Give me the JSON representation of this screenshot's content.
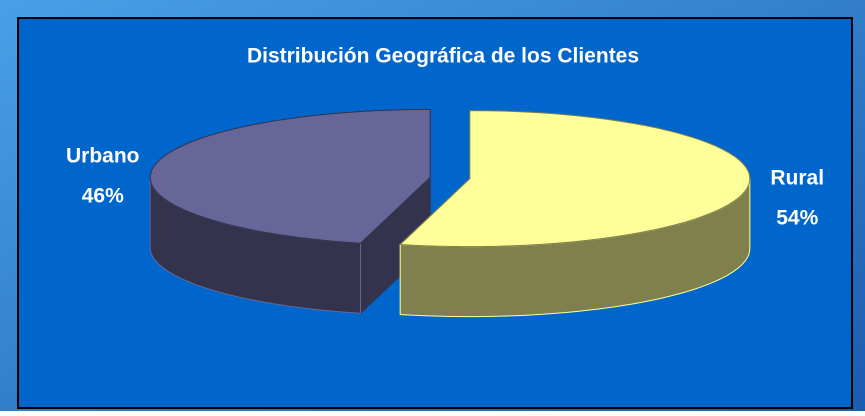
{
  "chart_data": {
    "type": "pie3d",
    "title": "Distribución Geográfica de los Clientes",
    "categories": [
      "Urbano",
      "Rural"
    ],
    "values": [
      46,
      54
    ],
    "value_labels": [
      "46%",
      "54%"
    ],
    "colors": [
      "#666699",
      "#ffff99"
    ]
  }
}
